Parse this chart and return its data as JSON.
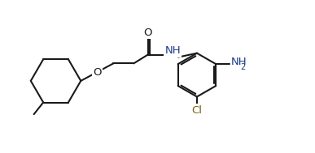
{
  "background": "#ffffff",
  "bond_color": "#1a1a1a",
  "bond_lw": 1.5,
  "text_color_default": "#1a1a1a",
  "text_O": "#1a1a1a",
  "text_NH": "#1a3a8a",
  "text_NH2": "#1a3a8a",
  "text_Cl": "#7a6010",
  "figsize": [
    3.87,
    1.89
  ],
  "dpi": 100,
  "xlim": [
    0,
    10
  ],
  "ylim": [
    0,
    4.88
  ]
}
